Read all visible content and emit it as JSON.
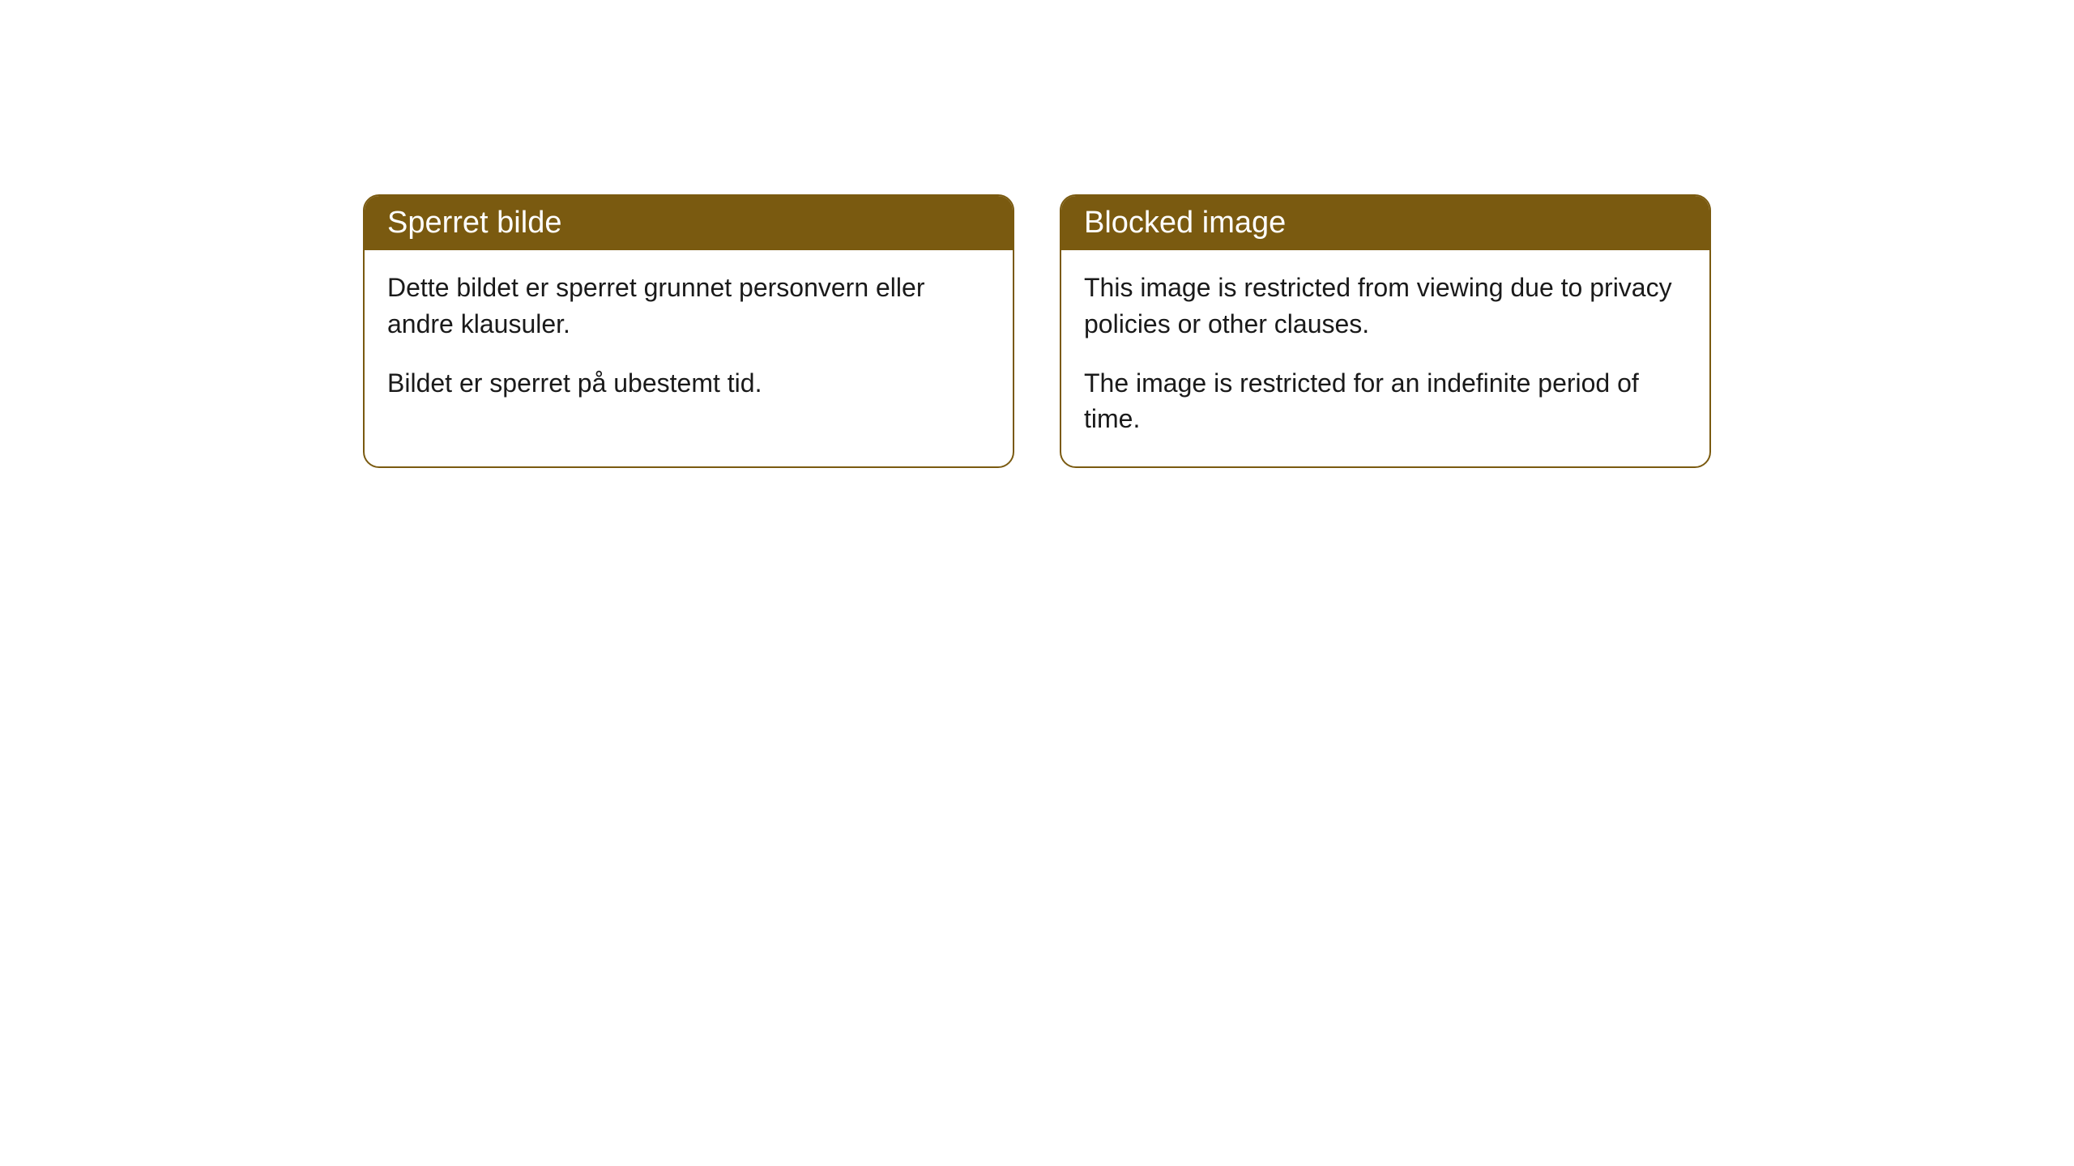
{
  "cards": {
    "norwegian": {
      "title": "Sperret bilde",
      "paragraph1": "Dette bildet er sperret grunnet personvern eller andre klausuler.",
      "paragraph2": "Bildet er sperret på ubestemt tid."
    },
    "english": {
      "title": "Blocked image",
      "paragraph1": "This image is restricted from viewing due to privacy policies or other clauses.",
      "paragraph2": "The image is restricted for an indefinite period of time."
    }
  },
  "styling": {
    "header_background": "#7a5a10",
    "header_text_color": "#ffffff",
    "border_color": "#7a5a10",
    "body_background": "#ffffff",
    "body_text_color": "#1a1a1a",
    "border_radius": 20,
    "title_fontsize": 38,
    "body_fontsize": 32
  }
}
